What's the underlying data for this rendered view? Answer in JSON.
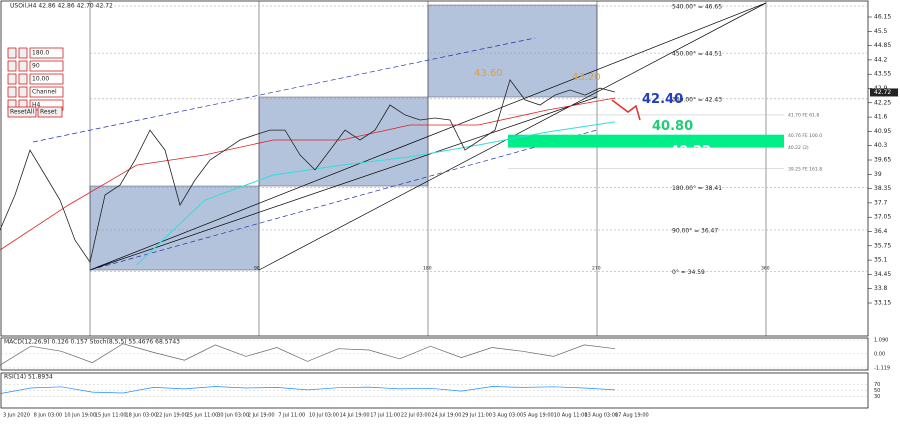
{
  "header": {
    "symbol": "USOil,H4 42.86 42.86 42.70 42.72"
  },
  "controls": {
    "inputs": [
      "180.0",
      "90",
      "10.00",
      "Channel",
      "H4"
    ],
    "buttons": [
      "ResetAll",
      "Reset"
    ]
  },
  "price_axis": {
    "ticks": [
      46.15,
      45.5,
      44.85,
      44.2,
      43.55,
      42.9,
      42.25,
      41.6,
      40.95,
      40.3,
      39.65,
      39,
      38.35,
      37.7,
      37.05,
      36.4,
      35.75,
      35.1,
      34.45,
      33.8,
      33.15
    ],
    "current": 42.72
  },
  "gann_levels": [
    {
      "label": "540.00° = 46.65",
      "value": 46.65
    },
    {
      "label": "450.00° = 44.51",
      "value": 44.51
    },
    {
      "label": "360.00° = 42.43",
      "value": 42.43
    },
    {
      "label": "180.00° = 38.41",
      "value": 38.41
    },
    {
      "label": "90.00° = 36.47",
      "value": 36.47
    },
    {
      "label": "0° = 34.59",
      "value": 34.59
    }
  ],
  "fib_labels": [
    {
      "label": "41.70 FE 61.8",
      "value": 41.7
    },
    {
      "label": "40.76 FE 100.0",
      "value": 40.76
    },
    {
      "label": "40.22 (2)",
      "value": 40.22
    },
    {
      "label": "39.25 FE 161.8",
      "value": 39.25
    }
  ],
  "annotations": [
    {
      "label": "42.40",
      "value": 42.4
    },
    {
      "label": "40.80",
      "value": 40.8
    },
    {
      "label": "40.22",
      "value": 40.22
    },
    {
      "label": "43.60",
      "value": 43.6
    },
    {
      "label": "43.20",
      "value": 43.2
    }
  ],
  "time_marks": [
    "90",
    "180",
    "270",
    "360"
  ],
  "price_closes": [
    36.47,
    38.06,
    40.1,
    38.97,
    37.83,
    36.01,
    35.01,
    38.06,
    38.51,
    39.65,
    41.01,
    40.1,
    37.6,
    38.74,
    39.65,
    40.1,
    40.56,
    40.79,
    41.01,
    41.01,
    39.88,
    39.2,
    40.1,
    41.01,
    40.56,
    41.01,
    42.15,
    41.7,
    41.47,
    41.56,
    41.47,
    40.1,
    40.56,
    41.01,
    43.29,
    42.38,
    42.15,
    42.6,
    42.83,
    42.6,
    42.92,
    42.74
  ],
  "ma_fast": [
    35.56,
    37.6,
    39.42,
    39.88,
    40.56,
    40.56,
    41.24,
    41.24,
    41.92,
    42.47
  ],
  "ma_slow": [
    null,
    null,
    34.88,
    37.83,
    38.97,
    39.42,
    39.79,
    40.33,
    40.92,
    41.38
  ],
  "macd": {
    "label": "MACD(12,26,9) 0.126 0.157  Stoch(8,5,5) 55.4676 68.5743",
    "ticks": [
      {
        "value": 1.09,
        "label": "1.090"
      },
      {
        "value": 0,
        "label": "0.00"
      },
      {
        "value": -1.119,
        "label": "-1.119"
      }
    ],
    "values": [
      -0.9,
      0.6,
      0.2,
      -0.7,
      0.8,
      0.1,
      -0.5,
      0.7,
      -0.2,
      0.5,
      -0.6,
      0.4,
      0.3,
      -0.4,
      0.6,
      -0.3,
      0.5,
      0.2,
      -0.2,
      0.7,
      0.4
    ]
  },
  "rsi": {
    "label": "RSI(14) 51.8934",
    "ticks": [
      70,
      50,
      30
    ],
    "values": [
      40,
      58,
      62,
      45,
      42,
      60,
      55,
      63,
      58,
      60,
      52,
      59,
      61,
      55,
      57,
      48,
      63,
      60,
      62,
      58,
      52
    ]
  },
  "time_axis": [
    "3 Jun 2020",
    "8 Jun 03:00",
    "10 Jun 19:00",
    "15 Jun 11:00",
    "18 Jun 03:00",
    "22 Jun 19:00",
    "25 Jun 11:00",
    "30 Jun 03:00",
    "2 Jul 19:00",
    "7 Jul 11:00",
    "10 Jul 03:00",
    "14 Jul 19:00",
    "17 Jul 11:00",
    "22 Jul 03:00",
    "24 Jul 19:00",
    "29 Jul 11:00",
    "3 Aug 03:00",
    "5 Aug 19:00",
    "10 Aug 11:00",
    "13 Aug 03:00",
    "17 Aug 19:00"
  ]
}
